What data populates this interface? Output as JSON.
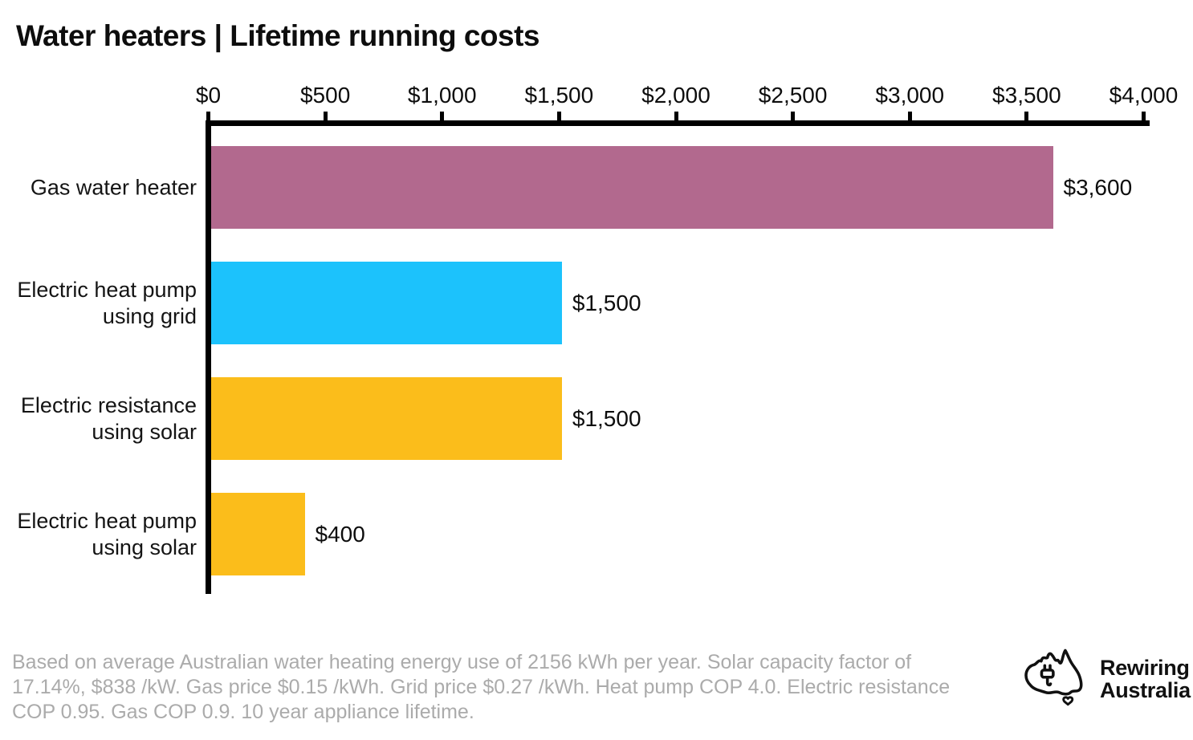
{
  "title": "Water heaters | Lifetime running costs",
  "chart_data": {
    "type": "bar",
    "orientation": "horizontal",
    "title": "Water heaters | Lifetime running costs",
    "categories": [
      "Gas water heater",
      "Electric heat pump\nusing grid",
      "Electric resistance\nusing solar",
      "Electric heat pump\nusing solar"
    ],
    "values": [
      3600,
      1500,
      1500,
      400
    ],
    "value_labels": [
      "$3,600",
      "$1,500",
      "$1,500",
      "$400"
    ],
    "bar_colors": [
      "#b2698e",
      "#1cc2fc",
      "#fbbd1b",
      "#fbbd1b"
    ],
    "xlabel": "",
    "ylabel": "",
    "xlim": [
      0,
      4000
    ],
    "x_ticks": [
      0,
      500,
      1000,
      1500,
      2000,
      2500,
      3000,
      3500,
      4000
    ],
    "x_tick_labels": [
      "$0",
      "$500",
      "$1,000",
      "$1,500",
      "$2,000",
      "$2,500",
      "$3,000",
      "$3,500",
      "$4,000"
    ],
    "axis_position": "top",
    "grid": false,
    "legend": "none"
  },
  "footnote": "Based on average Australian water heating energy use of 2156 kWh per year. Solar capacity factor of 17.14%, $838 /kW. Gas price $0.15 /kWh. Grid price $0.27 /kWh. Heat pump COP 4.0. Electric resistance COP 0.95. Gas COP 0.9. 10 year appliance lifetime.",
  "logo": {
    "line1": "Rewiring",
    "line2": "Australia",
    "icon": "australia-plug-icon"
  },
  "colors": {
    "axis": "#000000",
    "title_text": "#0d0d0d",
    "footnote_text": "#ababab",
    "background": "#ffffff"
  }
}
